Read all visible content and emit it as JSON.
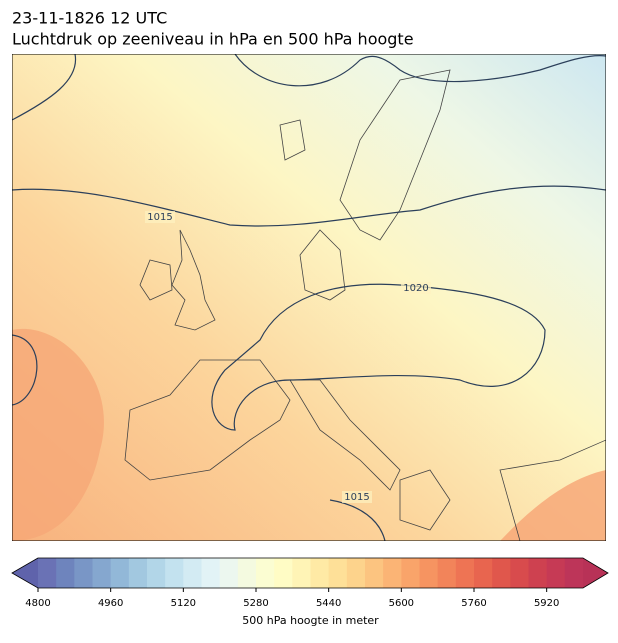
{
  "header": {
    "title": "23-11-1826 12 UTC",
    "subtitle": "Luchtdruk op zeeniveau in hPa en 500 hPa hoogte"
  },
  "isobar_labels": [
    1015,
    1020,
    1015
  ],
  "colorbar": {
    "label": "500 hPa hoogte in meter",
    "lim": [
      4800,
      6000
    ],
    "ticks": [
      4800,
      4960,
      5120,
      5280,
      5440,
      5600,
      5760,
      5920
    ],
    "under_color": "#5f63ab",
    "over_color": "#b83257",
    "colors": [
      "#6a72b5",
      "#6e84bd",
      "#7996c6",
      "#85a7cf",
      "#92b8d8",
      "#a2c8e0",
      "#b2d6e8",
      "#c3e2ef",
      "#d3ebf3",
      "#e2f3f6",
      "#ecf7ef",
      "#f4fae0",
      "#fbfdd2",
      "#fffcc5",
      "#fff4b6",
      "#ffeaa5",
      "#fee098",
      "#fdd38c",
      "#fcc480",
      "#fbb475",
      "#f9a46a",
      "#f69461",
      "#f2845a",
      "#ee7454",
      "#e8654f",
      "#e0574c",
      "#d84b4d",
      "#ce4150",
      "#c63a55",
      "#bd3559"
    ]
  }
}
